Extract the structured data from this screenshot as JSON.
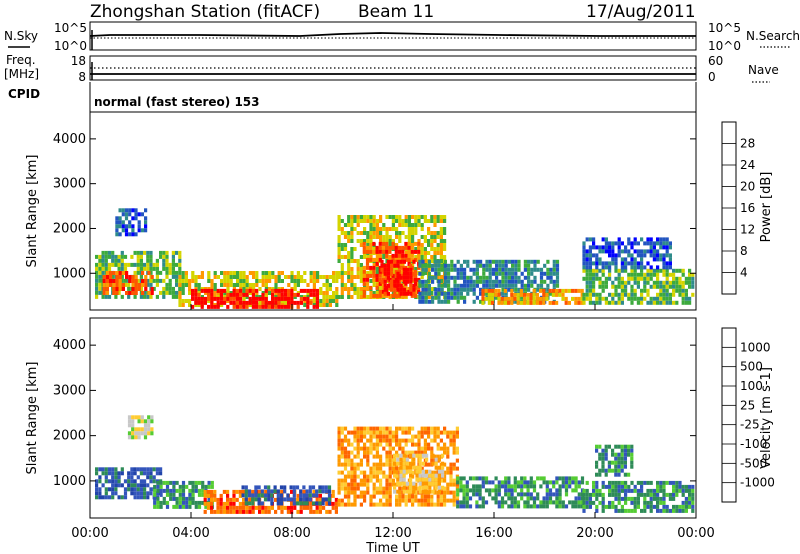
{
  "header": {
    "station": "Zhongshan Station (fitACF)",
    "beam": "Beam 11",
    "date": "17/Aug/2011"
  },
  "top_panels": {
    "nsky_label": "N.Sky",
    "nsky_ticks": [
      "10^5",
      "10^0"
    ],
    "nsearch_label": "N.Search",
    "nsearch_ticks": [
      "10^5",
      "10^0"
    ],
    "freq_label": "Freq.",
    "freq_unit": "[MHz]",
    "freq_ticks": [
      "18",
      "8"
    ],
    "nave_label": "Nave",
    "nave_ticks": [
      "60",
      "0"
    ],
    "cpid_label": "CPID",
    "cpid_text": "normal (fast stereo) 153"
  },
  "chart_data": [
    {
      "type": "heatmap",
      "name": "power",
      "ylabel": "Slant Range [km]",
      "colorbar_label": "Power [dB]",
      "colorbar_ticks": [
        "28",
        "24",
        "20",
        "16",
        "12",
        "8",
        "4"
      ],
      "colors": [
        "#0000ff",
        "#2255c0",
        "#2e8b8b",
        "#3daa3d",
        "#d4d400",
        "#ff9900",
        "#ff5500",
        "#ff0000"
      ],
      "ylim": [
        180,
        4600
      ],
      "yticks": [
        "1000",
        "2000",
        "3000",
        "4000"
      ],
      "xlim": [
        0,
        24
      ],
      "blobs": [
        {
          "t0": 0.2,
          "t1": 3.5,
          "r0": 450,
          "r1": 1500,
          "v": 3
        },
        {
          "t0": 0.5,
          "t1": 2.5,
          "r0": 550,
          "r1": 1050,
          "v": 6
        },
        {
          "t0": 1.0,
          "t1": 2.2,
          "r0": 1900,
          "r1": 2450,
          "v": 1
        },
        {
          "t0": 3.5,
          "t1": 9.8,
          "r0": 300,
          "r1": 1050,
          "v": 4
        },
        {
          "t0": 4.0,
          "t1": 9.0,
          "r0": 280,
          "r1": 650,
          "v": 7
        },
        {
          "t0": 9.8,
          "t1": 14.0,
          "r0": 500,
          "r1": 2300,
          "v": 4
        },
        {
          "t0": 10.8,
          "t1": 13.0,
          "r0": 500,
          "r1": 1700,
          "v": 6
        },
        {
          "t0": 11.5,
          "t1": 12.8,
          "r0": 500,
          "r1": 1300,
          "v": 7
        },
        {
          "t0": 13.0,
          "t1": 18.5,
          "r0": 400,
          "r1": 1300,
          "v": 2
        },
        {
          "t0": 15.5,
          "t1": 19.5,
          "r0": 300,
          "r1": 650,
          "v": 5
        },
        {
          "t0": 19.5,
          "t1": 23.9,
          "r0": 350,
          "r1": 1100,
          "v": 3
        },
        {
          "t0": 19.5,
          "t1": 23.0,
          "r0": 1100,
          "r1": 1800,
          "v": 1
        }
      ]
    },
    {
      "type": "heatmap",
      "name": "velocity",
      "ylabel": "Slant Range [km]",
      "colorbar_label": "Velocity [m s-1]",
      "colorbar_ticks": [
        "1000",
        "500",
        "100",
        "25",
        "-25",
        "-100",
        "-500",
        "-1000"
      ],
      "colors": [
        "#ff0000",
        "#ff6600",
        "#ff9900",
        "#ffcc33",
        "#c8c8c8",
        "#55cc33",
        "#2e8b57",
        "#3355bb",
        "#2244aa"
      ],
      "ylim": [
        180,
        4600
      ],
      "yticks": [
        "1000",
        "2000",
        "3000",
        "4000"
      ],
      "xlim": [
        0,
        24
      ],
      "blobs": [
        {
          "t0": 0.2,
          "t1": 2.8,
          "r0": 600,
          "r1": 1300,
          "v": 7
        },
        {
          "t0": 1.5,
          "t1": 2.5,
          "r0": 1950,
          "r1": 2450,
          "v": 4
        },
        {
          "t0": 2.5,
          "t1": 4.8,
          "r0": 400,
          "r1": 1000,
          "v": 6
        },
        {
          "t0": 4.5,
          "t1": 9.8,
          "r0": 300,
          "r1": 800,
          "v": 1
        },
        {
          "t0": 6.0,
          "t1": 9.5,
          "r0": 500,
          "r1": 900,
          "v": 7
        },
        {
          "t0": 9.8,
          "t1": 14.5,
          "r0": 450,
          "r1": 2200,
          "v": 2
        },
        {
          "t0": 12.0,
          "t1": 14.0,
          "r0": 800,
          "r1": 1600,
          "v": 3
        },
        {
          "t0": 14.5,
          "t1": 19.5,
          "r0": 400,
          "r1": 1100,
          "v": 6
        },
        {
          "t0": 19.5,
          "t1": 23.9,
          "r0": 350,
          "r1": 1000,
          "v": 6
        },
        {
          "t0": 20.0,
          "t1": 21.5,
          "r0": 1100,
          "r1": 1800,
          "v": 6
        }
      ]
    }
  ],
  "x_axis": {
    "ticks": [
      "00:00",
      "04:00",
      "08:00",
      "12:00",
      "16:00",
      "20:00",
      "00:00"
    ],
    "label": "Time UT"
  }
}
